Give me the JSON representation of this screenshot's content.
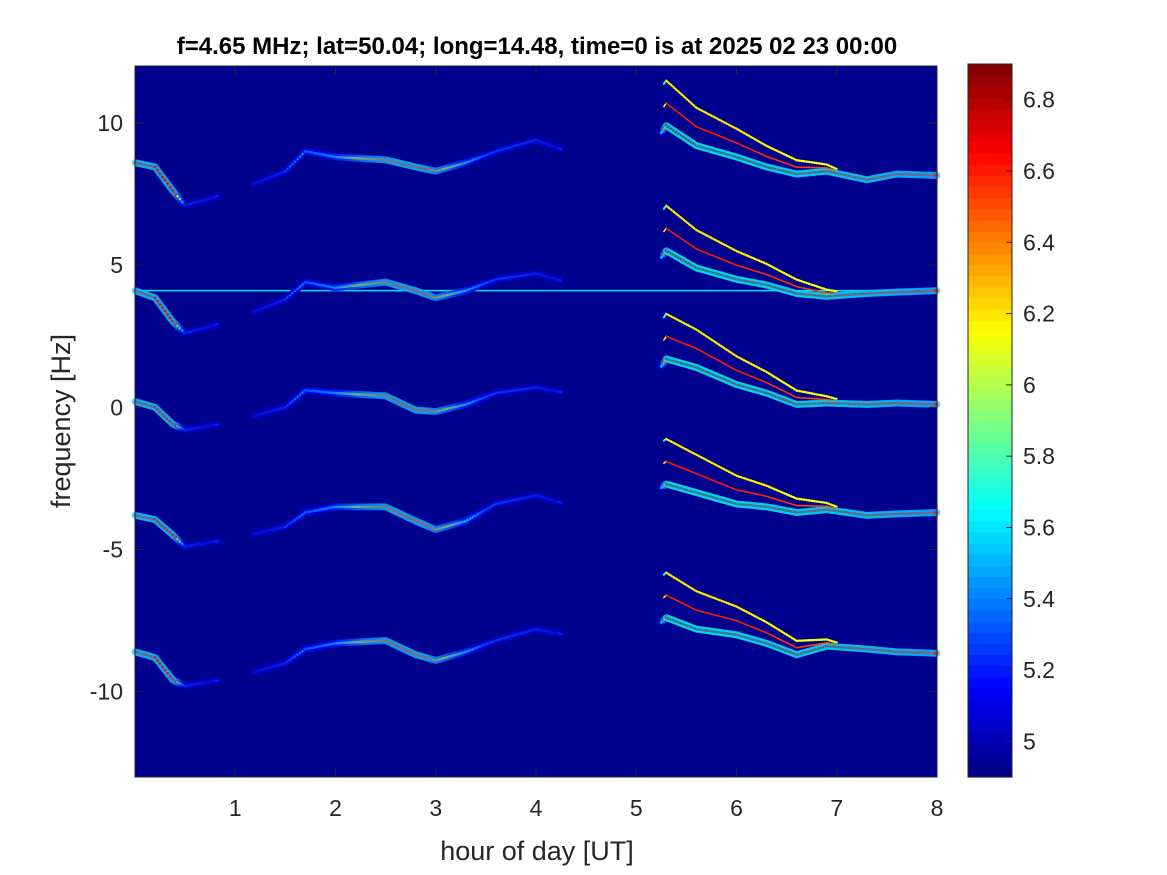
{
  "chart_data": {
    "type": "heatmap",
    "title": "f=4.65 MHz;  lat=50.04; long=14.48, time=0 is at 2025 02 23 00:00",
    "xlabel": "hour of day [UT]",
    "ylabel": "frequency [Hz]",
    "xlim": [
      0,
      8
    ],
    "ylim": [
      -13,
      12
    ],
    "xticks": [
      1,
      2,
      3,
      4,
      5,
      6,
      7,
      8
    ],
    "xtick_labels": [
      "1",
      "2",
      "3",
      "4",
      "5",
      "6",
      "7",
      "8"
    ],
    "yticks": [
      10,
      5,
      0,
      -5,
      -10
    ],
    "ytick_labels": [
      "10",
      "5",
      "0",
      "-5",
      "-10"
    ],
    "colormap": "jet",
    "color_limits": [
      4.9,
      6.9
    ],
    "colorbar_ticks": [
      6.8,
      6.6,
      6.4,
      6.2,
      6,
      5.8,
      5.6,
      5.4,
      5.2,
      5
    ],
    "colorbar_tick_labels": [
      "6.8",
      "6.6",
      "6.4",
      "6.2",
      "6",
      "5.8",
      "5.6",
      "5.4",
      "5.2",
      "5"
    ],
    "background_value": 4.95,
    "constant_line": {
      "y": 4.1,
      "value": 5.6
    },
    "traces": [
      {
        "offset": 8.6,
        "points": [
          [
            0,
            0
          ],
          [
            0.2,
            -0.15
          ],
          [
            0.38,
            -1.0
          ],
          [
            0.5,
            -1.5
          ],
          [
            1,
            -1.0
          ],
          [
            1.5,
            -0.3
          ],
          [
            1.7,
            0.4
          ],
          [
            2.0,
            0.2
          ],
          [
            2.5,
            0.1
          ],
          [
            2.8,
            -0.15
          ],
          [
            3.0,
            -0.3
          ],
          [
            3.3,
            0.0
          ],
          [
            3.6,
            0.4
          ],
          [
            4.0,
            0.8
          ],
          [
            4.3,
            0.4
          ],
          [
            4.6,
            0.0
          ],
          [
            5.0,
            -0.2
          ],
          [
            5.3,
            1.3
          ],
          [
            5.6,
            0.6
          ],
          [
            6.0,
            0.2
          ],
          [
            6.3,
            -0.15
          ],
          [
            6.6,
            -0.4
          ],
          [
            6.9,
            -0.3
          ],
          [
            7.3,
            -0.6
          ],
          [
            7.6,
            -0.4
          ],
          [
            8.0,
            -0.45
          ]
        ]
      },
      {
        "offset": 4.1,
        "points": [
          [
            0,
            0
          ],
          [
            0.2,
            -0.25
          ],
          [
            0.38,
            -1.1
          ],
          [
            0.5,
            -1.5
          ],
          [
            1,
            -1.0
          ],
          [
            1.5,
            -0.3
          ],
          [
            1.7,
            0.3
          ],
          [
            2.0,
            0.1
          ],
          [
            2.5,
            0.3
          ],
          [
            2.8,
            0.0
          ],
          [
            3.0,
            -0.25
          ],
          [
            3.3,
            0.0
          ],
          [
            3.6,
            0.4
          ],
          [
            4.0,
            0.6
          ],
          [
            4.3,
            0.3
          ],
          [
            4.6,
            0.1
          ],
          [
            5.0,
            0.0
          ],
          [
            5.3,
            1.4
          ],
          [
            5.6,
            0.8
          ],
          [
            6.0,
            0.4
          ],
          [
            6.3,
            0.2
          ],
          [
            6.6,
            -0.1
          ],
          [
            6.9,
            -0.2
          ],
          [
            7.3,
            -0.1
          ],
          [
            7.6,
            -0.05
          ],
          [
            8.0,
            0.0
          ]
        ]
      },
      {
        "offset": 0.2,
        "points": [
          [
            0,
            0
          ],
          [
            0.2,
            -0.2
          ],
          [
            0.38,
            -0.8
          ],
          [
            0.5,
            -1.0
          ],
          [
            1,
            -0.7
          ],
          [
            1.5,
            -0.2
          ],
          [
            1.7,
            0.4
          ],
          [
            2.0,
            0.3
          ],
          [
            2.5,
            0.2
          ],
          [
            2.8,
            -0.3
          ],
          [
            3.0,
            -0.35
          ],
          [
            3.3,
            -0.1
          ],
          [
            3.6,
            0.3
          ],
          [
            4.0,
            0.5
          ],
          [
            4.3,
            0.3
          ],
          [
            4.6,
            0.1
          ],
          [
            5.0,
            -0.1
          ],
          [
            5.3,
            1.5
          ],
          [
            5.6,
            1.2
          ],
          [
            6.0,
            0.6
          ],
          [
            6.3,
            0.3
          ],
          [
            6.6,
            -0.1
          ],
          [
            6.9,
            -0.05
          ],
          [
            7.3,
            -0.1
          ],
          [
            7.6,
            -0.05
          ],
          [
            8.0,
            -0.1
          ]
        ]
      },
      {
        "offset": -3.8,
        "points": [
          [
            0,
            0
          ],
          [
            0.2,
            -0.15
          ],
          [
            0.38,
            -0.7
          ],
          [
            0.5,
            -1.1
          ],
          [
            1,
            -0.8
          ],
          [
            1.5,
            -0.4
          ],
          [
            1.7,
            0.1
          ],
          [
            2.0,
            0.3
          ],
          [
            2.5,
            0.3
          ],
          [
            2.8,
            -0.2
          ],
          [
            3.0,
            -0.5
          ],
          [
            3.3,
            -0.2
          ],
          [
            3.6,
            0.4
          ],
          [
            4.0,
            0.7
          ],
          [
            4.3,
            0.4
          ],
          [
            4.6,
            0.2
          ],
          [
            5.0,
            0.3
          ],
          [
            5.3,
            1.1
          ],
          [
            5.6,
            0.8
          ],
          [
            6.0,
            0.4
          ],
          [
            6.3,
            0.3
          ],
          [
            6.6,
            0.1
          ],
          [
            6.9,
            0.2
          ],
          [
            7.3,
            0.0
          ],
          [
            7.6,
            0.05
          ],
          [
            8.0,
            0.1
          ]
        ]
      },
      {
        "offset": -8.6,
        "points": [
          [
            0,
            0
          ],
          [
            0.2,
            -0.2
          ],
          [
            0.38,
            -1.0
          ],
          [
            0.5,
            -1.2
          ],
          [
            1,
            -0.9
          ],
          [
            1.5,
            -0.4
          ],
          [
            1.7,
            0.1
          ],
          [
            2.0,
            0.3
          ],
          [
            2.5,
            0.4
          ],
          [
            2.8,
            -0.1
          ],
          [
            3.0,
            -0.3
          ],
          [
            3.3,
            0.0
          ],
          [
            3.6,
            0.4
          ],
          [
            4.0,
            0.8
          ],
          [
            4.3,
            0.6
          ],
          [
            4.6,
            0.3
          ],
          [
            5.0,
            0.2
          ],
          [
            5.3,
            1.2
          ],
          [
            5.6,
            0.8
          ],
          [
            6.0,
            0.6
          ],
          [
            6.3,
            0.3
          ],
          [
            6.6,
            -0.1
          ],
          [
            6.9,
            0.2
          ],
          [
            7.3,
            0.1
          ],
          [
            7.6,
            0.0
          ],
          [
            8.0,
            -0.05
          ]
        ]
      }
    ],
    "intensity_profile": [
      [
        0.0,
        6.7
      ],
      [
        0.4,
        6.7
      ],
      [
        0.5,
        5.3
      ],
      [
        1.0,
        5.15
      ],
      [
        1.5,
        5.3
      ],
      [
        1.7,
        5.5
      ],
      [
        2.0,
        5.7
      ],
      [
        2.3,
        6.3
      ],
      [
        2.6,
        6.6
      ],
      [
        2.9,
        6.6
      ],
      [
        3.2,
        6.0
      ],
      [
        3.5,
        5.4
      ],
      [
        4.0,
        5.3
      ],
      [
        4.5,
        5.1
      ],
      [
        5.0,
        5.05
      ],
      [
        5.25,
        5.1
      ],
      [
        5.3,
        6.9
      ],
      [
        6.0,
        6.9
      ],
      [
        7.0,
        6.8
      ],
      [
        8.0,
        6.6
      ]
    ]
  }
}
